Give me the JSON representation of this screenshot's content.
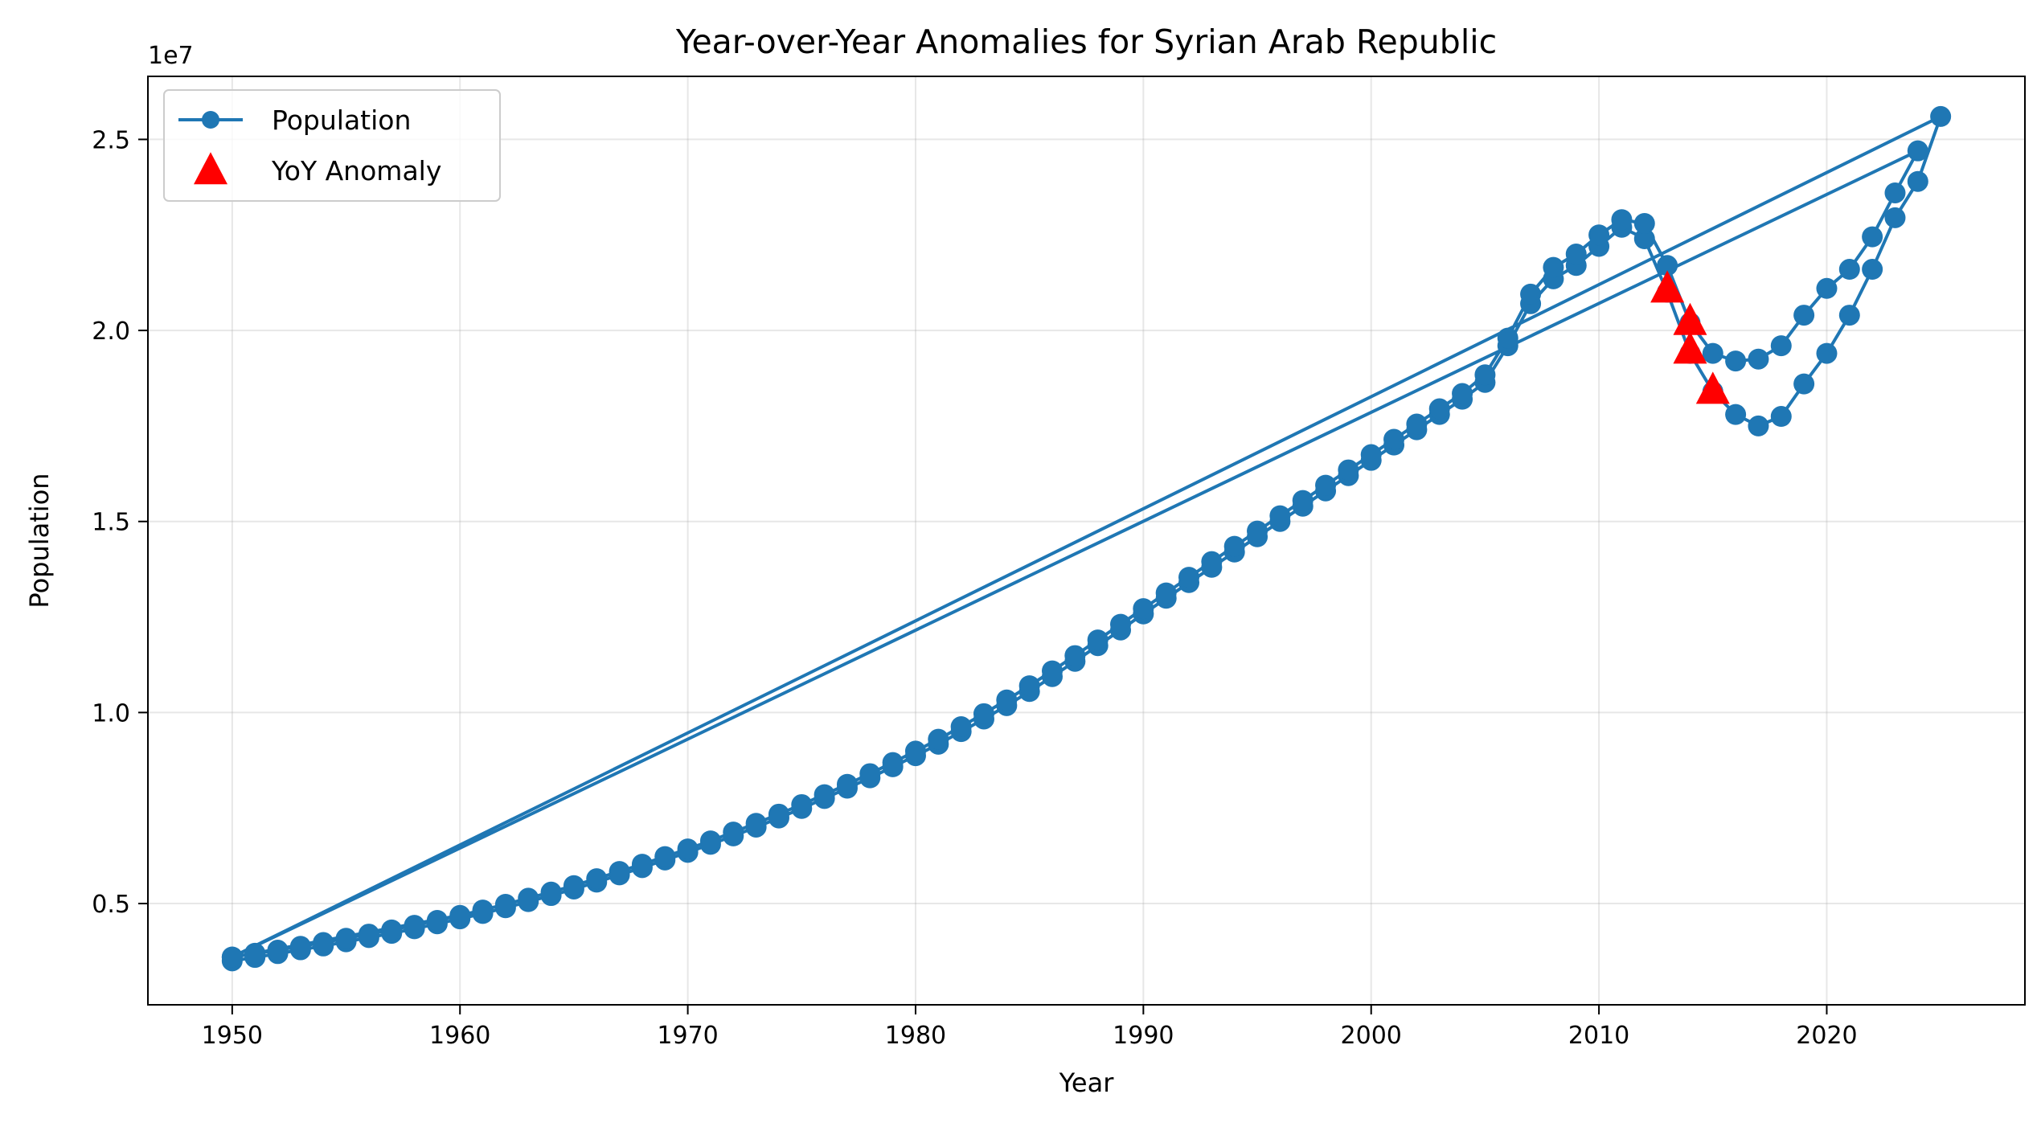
{
  "chart_data": {
    "type": "line",
    "title": "Year-over-Year Anomalies for Syrian Arab Republic",
    "xlabel": "Year",
    "ylabel": "Population",
    "y_multiplier_label": "1e7",
    "xlim": [
      1946.3,
      2028.7
    ],
    "ylim": [
      2350000,
      26650000
    ],
    "x_ticks": [
      1950,
      1960,
      1970,
      1980,
      1990,
      2000,
      2010,
      2020
    ],
    "y_ticks": [
      5000000,
      10000000,
      15000000,
      20000000,
      25000000
    ],
    "y_tick_labels": [
      "0.5",
      "1.0",
      "1.5",
      "2.0",
      "2.5"
    ],
    "grid": true,
    "legend_position": "top-left",
    "colors": {
      "line": "#1f77b4",
      "anomaly": "#ff0000"
    },
    "series": [
      {
        "name": "Population",
        "style": "line-with-circle-markers",
        "x": [
          1950,
          1951,
          1952,
          1953,
          1954,
          1955,
          1956,
          1957,
          1958,
          1959,
          1960,
          1961,
          1962,
          1963,
          1964,
          1965,
          1966,
          1967,
          1968,
          1969,
          1970,
          1971,
          1972,
          1973,
          1974,
          1975,
          1976,
          1977,
          1978,
          1979,
          1980,
          1981,
          1982,
          1983,
          1984,
          1985,
          1986,
          1987,
          1988,
          1989,
          1990,
          1991,
          1992,
          1993,
          1994,
          1995,
          1996,
          1997,
          1998,
          1999,
          2000,
          2001,
          2002,
          2003,
          2004,
          2005,
          2006,
          2007,
          2008,
          2009,
          2010,
          2011,
          2012,
          2013,
          2014,
          2015,
          2016,
          2017,
          2018,
          2019,
          2020,
          2021,
          2022,
          2023,
          2024,
          2025,
          1950,
          1951,
          1952,
          1953,
          1954,
          1955,
          1956,
          1957,
          1958,
          1959,
          1960,
          1961,
          1962,
          1963,
          1964,
          1965,
          1966,
          1967,
          1968,
          1969,
          1970,
          1971,
          1972,
          1973,
          1974,
          1975,
          1976,
          1977,
          1978,
          1979,
          1980,
          1981,
          1982,
          1983,
          1984,
          1985,
          1986,
          1987,
          1988,
          1989,
          1990,
          1991,
          1992,
          1993,
          1994,
          1995,
          1996,
          1997,
          1998,
          1999,
          2000,
          2001,
          2002,
          2003,
          2004,
          2005,
          2006,
          2007,
          2008,
          2009,
          2010,
          2011,
          2012,
          2013,
          2014,
          2015,
          2016,
          2017,
          2018,
          2019,
          2020,
          2021,
          2022,
          2023,
          2024,
          1950,
          1951,
          1961
        ],
        "y": [
          3500000,
          3590000,
          3690000,
          3790000,
          3890000,
          4000000,
          4110000,
          4220000,
          4340000,
          4470000,
          4600000,
          4740000,
          4890000,
          5050000,
          5210000,
          5380000,
          5560000,
          5750000,
          5940000,
          6140000,
          6340000,
          6550000,
          6770000,
          7000000,
          7240000,
          7490000,
          7750000,
          8020000,
          8290000,
          8580000,
          8870000,
          9170000,
          9500000,
          9830000,
          10180000,
          10550000,
          10940000,
          11340000,
          11750000,
          12160000,
          12580000,
          12990000,
          13400000,
          13800000,
          14200000,
          14600000,
          15000000,
          15400000,
          15800000,
          16200000,
          16600000,
          17000000,
          17400000,
          17800000,
          18200000,
          18640000,
          19600000,
          20700000,
          21350000,
          21700000,
          22200000,
          22700000,
          22400000,
          21000000,
          19400000,
          18400000,
          17800000,
          17500000,
          17750000,
          18600000,
          19400000,
          20400000,
          21600000,
          22950000,
          23900000,
          25600000,
          3600000,
          3690000,
          3780000,
          3880000,
          3980000,
          4090000,
          4200000,
          4310000,
          4430000,
          4560000,
          4690000,
          4830000,
          4980000,
          5140000,
          5300000,
          5470000,
          5650000,
          5840000,
          6030000,
          6230000,
          6430000,
          6640000,
          6870000,
          7100000,
          7340000,
          7590000,
          7850000,
          8120000,
          8400000,
          8690000,
          8990000,
          9300000,
          9630000,
          9970000,
          10330000,
          10700000,
          11090000,
          11490000,
          11900000,
          12310000,
          12720000,
          13130000,
          13540000,
          13950000,
          14350000,
          14750000,
          15150000,
          15550000,
          15950000,
          16350000,
          16750000,
          17150000,
          17550000,
          17950000,
          18350000,
          18840000,
          19800000,
          20950000,
          21650000,
          22000000,
          22500000,
          22900000,
          22800000,
          21700000,
          20200000,
          19400000,
          19200000,
          19250000,
          19600000,
          20400000,
          21100000,
          21600000,
          22450000,
          23600000,
          24700000,
          3600000,
          3700000,
          4800000
        ]
      },
      {
        "name": "YoY Anomaly",
        "style": "red-triangle-markers",
        "x": [
          2013,
          2014,
          2014,
          2015
        ],
        "y": [
          21050000,
          20200000,
          19450000,
          18400000
        ]
      }
    ]
  }
}
